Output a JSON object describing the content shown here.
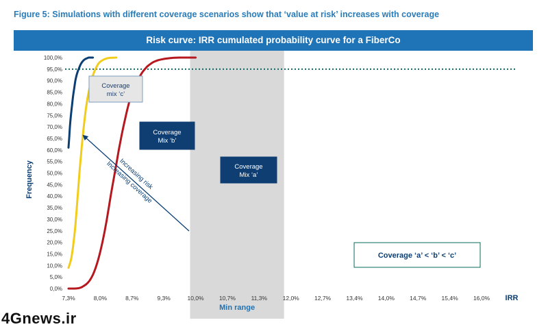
{
  "figure_title": "Figure 5: Simulations with different coverage scenarios show that ‘value at risk’ increases with coverage",
  "banner_title": "Risk curve: IRR cumulated probability curve for a FiberCo",
  "watermark": "4Gnews.ir",
  "colors": {
    "title_blue": "#2a7cb8",
    "banner_blue": "#1f73b7",
    "series_c": "#0b3e73",
    "series_b": "#f2cc1b",
    "series_a": "#b5181e",
    "threshold": "#0a6a5e",
    "min_range_fill": "#d9d9d9",
    "axis_text": "#333333",
    "dark_box": "#0f3f72",
    "light_box": "#e6e6e6"
  },
  "annotations": {
    "box_c_line1": "Coverage",
    "box_c_line2": "mix ‘c’",
    "box_b_line1": "Coverage",
    "box_b_line2": "Mix ‘b’",
    "box_a_line1": "Coverage",
    "box_a_line2": "Mix ‘a’",
    "arrow_line1": "Increasing risk",
    "arrow_line2": "Increasing coverage",
    "comparison": "Coverage ‘a’ < ‘b’ < ‘c’"
  },
  "chart_data": {
    "type": "line",
    "title": "Risk curve: IRR cumulated probability curve for a FiberCo",
    "xlabel": "IRR",
    "ylabel": "Frequency",
    "x_tick_labels": [
      "7,3%",
      "8,0%",
      "8,7%",
      "9,3%",
      "10,0%",
      "10,7%",
      "11,3%",
      "12,0%",
      "12,7%",
      "13,4%",
      "14,0%",
      "14,7%",
      "15,4%",
      "16,0%"
    ],
    "y_tick_labels": [
      "0,0%",
      "5,0%",
      "10,0%",
      "15,0%",
      "20,0%",
      "25,0%",
      "30,0%",
      "35,0%",
      "40,0%",
      "45,0%",
      "50,0%",
      "55,0%",
      "60,0%",
      "65,0%",
      "70,0%",
      "75,0%",
      "80,0%",
      "85,0%",
      "90,0%",
      "95,0%",
      "100,0%"
    ],
    "y_range": [
      0,
      100
    ],
    "threshold_y": 95,
    "threshold_label": "95,0%",
    "min_range": {
      "from_index": 4,
      "to_index": 7,
      "label": "Min range"
    },
    "series": [
      {
        "key": "c",
        "color": "#0b3e73",
        "x": [
          0,
          0.15,
          0.3,
          0.5,
          0.7,
          0.9,
          1.1,
          1.3,
          1.6,
          2.0,
          2.4,
          2.8,
          3.2,
          3.6,
          3.8,
          4.0,
          4.2,
          4.4,
          4.6
        ],
        "y": [
          61,
          66,
          71,
          76,
          80,
          84,
          87,
          90,
          93,
          95.5,
          97.5,
          98.7,
          99.4,
          99.8,
          100,
          100,
          100,
          100,
          100
        ]
      },
      {
        "key": "b",
        "color": "#f2cc1b",
        "x": [
          0,
          0.3,
          0.6,
          0.9,
          1.2,
          1.5,
          1.8,
          2.1,
          2.4,
          2.7,
          3.0,
          3.3,
          3.6,
          4.0,
          4.4,
          4.8,
          5.3,
          5.8,
          6.5,
          7.2,
          8.0,
          9.0
        ],
        "y": [
          9,
          11,
          14,
          19,
          25,
          33,
          42,
          51,
          59,
          66,
          72.5,
          78,
          82.5,
          87,
          90.5,
          93.5,
          96,
          97.8,
          99,
          99.6,
          99.9,
          100
        ]
      },
      {
        "key": "a",
        "color": "#b5181e",
        "x": [
          0,
          0.8,
          1.2,
          1.6,
          2.0,
          2.4,
          2.8,
          3.2,
          3.6,
          4.0,
          4.4,
          4.8,
          5.2,
          5.6,
          6.0,
          6.4,
          6.8,
          7.2,
          7.6,
          8.0,
          8.5,
          9.0,
          9.5,
          10.0,
          10.5,
          11.0,
          11.5,
          12.0,
          12.5,
          13.0,
          13.5,
          14.0,
          14.5,
          15.0,
          16.0,
          17.0,
          18.0,
          19.0,
          20.0,
          21.0,
          22.0,
          23.0,
          24.0
        ],
        "y": [
          0,
          0,
          0,
          0.1,
          0.2,
          0.5,
          1.0,
          1.6,
          2.4,
          3.5,
          5,
          7,
          9.5,
          12.5,
          16,
          20,
          24.5,
          29.5,
          35,
          40.5,
          47,
          53.5,
          60,
          66,
          71.5,
          76.5,
          81,
          84.5,
          87.5,
          90,
          92,
          93.8,
          95.2,
          96.4,
          98,
          98.9,
          99.4,
          99.7,
          99.9,
          100,
          100,
          100,
          100
        ]
      }
    ]
  }
}
